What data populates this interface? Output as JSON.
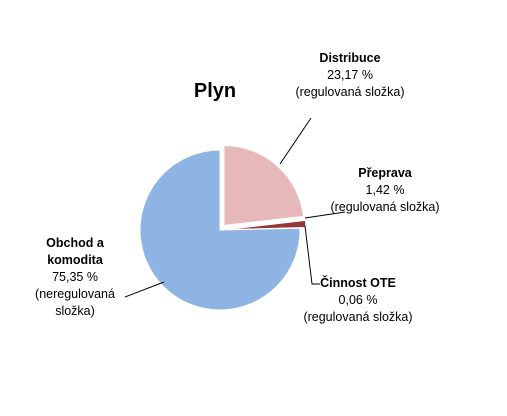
{
  "chart_data": {
    "type": "pie",
    "title": "Plyn",
    "categories": [
      "Distribuce",
      "Přeprava",
      "Činnost OTE",
      "Obchod a komodita"
    ],
    "values": [
      23.17,
      1.42,
      0.06,
      75.35
    ],
    "value_labels": [
      "23,17 %",
      "1,42 %",
      "0,06 %",
      "75,35 %"
    ],
    "notes": [
      "(regulovaná složka)",
      "(regulovaná složka)",
      "(regulovaná složka)",
      "(neregulovaná složka)"
    ],
    "colors": [
      "#e6b9b8",
      "#953735",
      "#c0504d",
      "#8eb4e3"
    ]
  }
}
